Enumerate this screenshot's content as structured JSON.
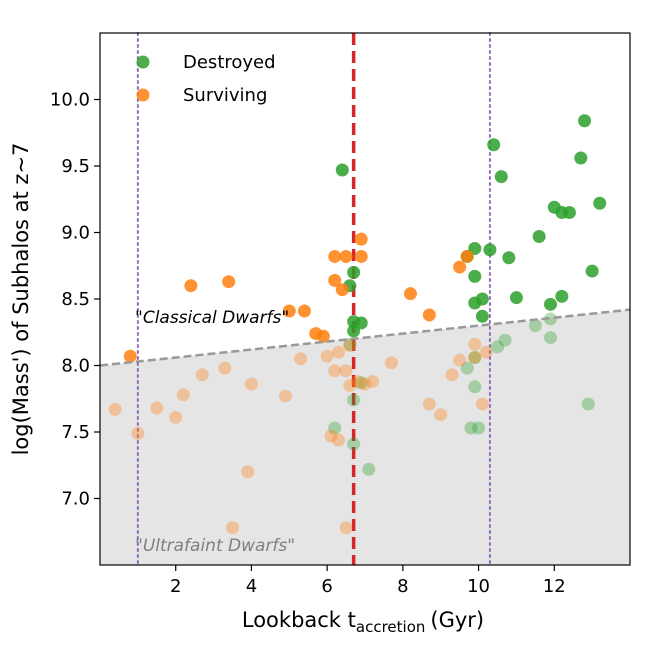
{
  "chart_data": {
    "type": "scatter",
    "xlabel_main": "Lookback t",
    "xlabel_sub": "accretion",
    "xlabel_unit": "(Gyr)",
    "ylabel": "log(Mass') of Subhalos at z~7",
    "xlim": [
      0,
      14
    ],
    "ylim": [
      6.5,
      10.5
    ],
    "xticks": [
      2,
      4,
      6,
      8,
      10,
      12
    ],
    "xtick_labels": [
      "2",
      "4",
      "6",
      "8",
      "10",
      "12"
    ],
    "yticks": [
      7.0,
      7.5,
      8.0,
      8.5,
      9.0,
      9.5,
      10.0
    ],
    "ytick_labels": [
      "7.0",
      "7.5",
      "8.0",
      "8.5",
      "9.0",
      "9.5",
      "10.0"
    ],
    "colors": {
      "destroyed": "#2ca02c",
      "surviving": "#ff7f0e",
      "red_line": "#d62728",
      "purple_line": "#9467bd",
      "dash_line": "#999999",
      "shade": "#e5e5e5"
    },
    "legend": [
      {
        "name": "Destroyed",
        "color": "#2ca02c"
      },
      {
        "name": "Surviving",
        "color": "#ff7f0e"
      }
    ],
    "vlines": {
      "red_dashed_x": 6.7,
      "purple_dotted_x": [
        1.0,
        10.3
      ]
    },
    "threshold_line": {
      "x": [
        0,
        14
      ],
      "y": [
        8.0,
        8.42
      ]
    },
    "annotations": {
      "classical": "\"Classical Dwarfs\"",
      "ultrafaint": "\"Ultrafaint Dwarfs\""
    },
    "series": [
      {
        "name": "Destroyed",
        "color": "#2ca02c",
        "x": [
          6.4,
          6.6,
          6.7,
          6.7,
          6.7,
          6.9,
          9.7,
          9.9,
          9.9,
          9.9,
          10.1,
          10.1,
          10.4,
          10.8,
          11.0,
          10.3,
          10.6,
          11.6,
          11.9,
          12.0,
          12.2,
          12.2,
          12.4,
          12.7,
          12.8,
          13.0,
          13.2,
          6.9,
          7.1,
          6.7,
          6.6,
          6.7,
          6.2,
          10.0,
          9.9,
          9.9,
          9.7,
          9.8,
          10.7,
          10.5,
          11.5,
          11.9,
          11.9,
          12.9
        ],
        "y": [
          9.47,
          8.6,
          8.7,
          8.33,
          8.26,
          8.32,
          8.82,
          8.88,
          8.67,
          8.47,
          8.5,
          8.37,
          9.66,
          8.81,
          8.51,
          8.87,
          9.42,
          8.97,
          8.46,
          9.19,
          9.15,
          8.52,
          9.15,
          9.56,
          9.84,
          8.71,
          9.22,
          7.87,
          7.22,
          7.74,
          8.16,
          7.41,
          7.53,
          7.53,
          7.84,
          8.06,
          7.98,
          7.53,
          8.19,
          8.14,
          8.3,
          8.35,
          8.21,
          7.71
        ]
      },
      {
        "name": "Surviving",
        "color": "#ff7f0e",
        "x": [
          0.8,
          2.4,
          3.4,
          5.0,
          5.4,
          5.7,
          5.9,
          6.2,
          6.2,
          6.4,
          6.5,
          6.9,
          6.9,
          8.2,
          8.7,
          9.5,
          9.7,
          6.0,
          6.2,
          6.3,
          6.5,
          6.6,
          6.8,
          7.0,
          7.2,
          7.7,
          5.3,
          4.0,
          4.9,
          3.3,
          2.7,
          2.2,
          2.0,
          1.5,
          1.0,
          0.4,
          3.9,
          3.5,
          6.5,
          6.1,
          6.3,
          6.6,
          8.7,
          9.0,
          9.3,
          9.5,
          9.9,
          10.1,
          9.9,
          10.2
        ],
        "y": [
          8.07,
          8.6,
          8.63,
          8.41,
          8.41,
          8.24,
          8.22,
          8.64,
          8.82,
          8.57,
          8.82,
          8.95,
          8.82,
          8.54,
          8.38,
          8.74,
          8.82,
          8.07,
          7.96,
          8.1,
          7.96,
          7.85,
          7.88,
          7.86,
          7.88,
          8.02,
          8.05,
          7.86,
          7.77,
          7.98,
          7.93,
          7.78,
          7.61,
          7.68,
          7.49,
          7.67,
          7.2,
          6.78,
          6.78,
          7.47,
          7.44,
          8.15,
          7.71,
          7.63,
          7.93,
          8.04,
          8.16,
          7.71,
          8.06,
          8.1
        ]
      }
    ]
  }
}
